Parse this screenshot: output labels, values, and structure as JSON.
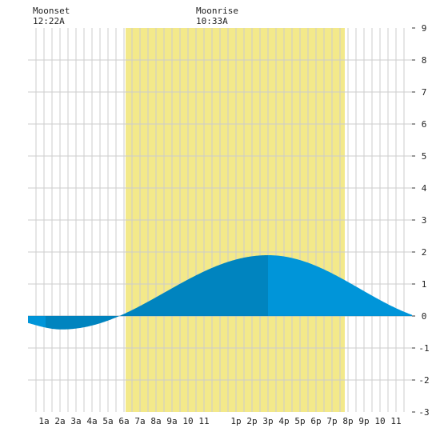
{
  "moon": {
    "moonset_label": "Moonset",
    "moonset_time": "12:22A",
    "moonrise_label": "Moonrise",
    "moonrise_time": "10:33A"
  },
  "chart_data": {
    "type": "area",
    "x_tick_labels": [
      "1a",
      "2a",
      "3a",
      "4a",
      "5a",
      "6a",
      "7a",
      "8a",
      "9a",
      "10",
      "11",
      "1p",
      "2p",
      "3p",
      "4p",
      "5p",
      "6p",
      "7p",
      "8p",
      "9p",
      "10",
      "11"
    ],
    "x_tick_hours": [
      1,
      2,
      3,
      4,
      5,
      6,
      7,
      8,
      9,
      10,
      11,
      13,
      14,
      15,
      16,
      17,
      18,
      19,
      20,
      21,
      22,
      23
    ],
    "y_tick_labels": [
      "9",
      "8",
      "7",
      "6",
      "5",
      "4",
      "3",
      "2",
      "1",
      "0",
      "-1",
      "-2",
      "-3"
    ],
    "y_tick_values": [
      9,
      8,
      7,
      6,
      5,
      4,
      3,
      2,
      1,
      0,
      -1,
      -2,
      -3
    ],
    "xlim_hours": [
      0,
      24
    ],
    "ylim": [
      -3,
      9
    ],
    "grid": true,
    "daylight_hours": [
      6.1,
      19.8
    ],
    "moonset_hour": 0.37,
    "moonrise_hour": 10.55,
    "tide": {
      "low1": {
        "hour": 2.1,
        "value": -0.42
      },
      "high": {
        "hour": 15.0,
        "value": 1.9
      },
      "start_value": -0.2,
      "end_value": 0.1,
      "crossings_hours": [
        6.0
      ]
    },
    "colors": {
      "background": "#ffffff",
      "grid": "#cccccc",
      "daylight": "#f3e98a",
      "tide_light": "#0095d9",
      "tide_dark": "#0084bf"
    }
  }
}
